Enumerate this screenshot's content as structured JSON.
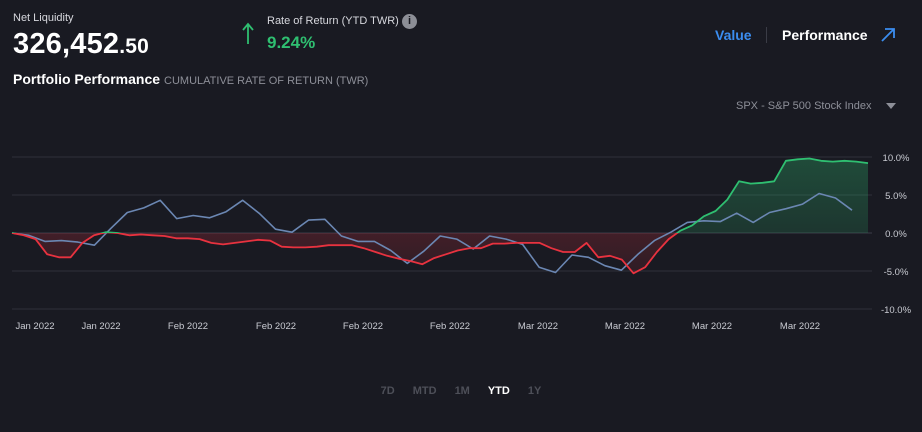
{
  "header": {
    "net_liquidity_label": "Net Liquidity",
    "net_liquidity_whole": "326,452",
    "net_liquidity_cents": ".50",
    "ror_label": "Rate of Return (YTD TWR)",
    "ror_info_glyph": "i",
    "ror_value": "9.24%",
    "ror_direction_icon": "arrow-up-icon",
    "portfolio_title": "Portfolio Performance",
    "portfolio_subtitle": "CUMULATIVE RATE OF RETURN (TWR)"
  },
  "tabs": {
    "value_label": "Value",
    "performance_label": "Performance",
    "active": "Performance"
  },
  "benchmark": {
    "selected": "SPX - S&P 500 Stock Index"
  },
  "periods": [
    {
      "label": "7D",
      "active": false
    },
    {
      "label": "MTD",
      "active": false
    },
    {
      "label": "1M",
      "active": false
    },
    {
      "label": "YTD",
      "active": true
    },
    {
      "label": "1Y",
      "active": false
    }
  ],
  "colors": {
    "background": "#191a22",
    "positive": "#2fbf71",
    "negative": "#e8323f",
    "benchmark": "#6b87b3",
    "accent": "#3b8df0",
    "grid": "#2e303a"
  },
  "chart_data": {
    "type": "line",
    "ylim": [
      -10,
      10
    ],
    "y_ticks": [
      "10.0%",
      "5.0%",
      "0.0%",
      "-5.0%",
      "-10.0%"
    ],
    "y_tick_values": [
      10,
      5,
      0,
      -5,
      -10
    ],
    "x_tick_labels": [
      "Jan 2022",
      "Jan 2022",
      "Feb 2022",
      "Feb 2022",
      "Feb 2022",
      "Feb 2022",
      "Mar 2022",
      "Mar 2022",
      "Mar 2022",
      "Mar 2022"
    ],
    "grid": true,
    "series": [
      {
        "role": "portfolio",
        "values": [
          0.0,
          -0.3,
          -0.8,
          -2.8,
          -3.2,
          -3.2,
          -1.3,
          -0.3,
          0.1,
          0.0,
          -0.3,
          -0.2,
          -0.3,
          -0.4,
          -0.7,
          -0.7,
          -0.8,
          -1.3,
          -1.5,
          -1.3,
          -1.1,
          -0.9,
          -1.0,
          -1.8,
          -1.9,
          -1.9,
          -1.8,
          -1.6,
          -1.6,
          -1.6,
          -2.0,
          -2.5,
          -3.0,
          -3.4,
          -3.7,
          -4.1,
          -3.3,
          -2.8,
          -2.3,
          -2.0,
          -2.0,
          -1.4,
          -1.4,
          -1.3,
          -1.3,
          -1.3,
          -2.0,
          -2.5,
          -2.5,
          -1.3,
          -3.2,
          -3.0,
          -3.5,
          -5.3,
          -4.5,
          -2.5,
          -0.8,
          0.3,
          1.0,
          2.2,
          2.9,
          4.4,
          6.8,
          6.5,
          6.6,
          6.8,
          9.5,
          9.7,
          9.8,
          9.5,
          9.4,
          9.5,
          9.4,
          9.2
        ]
      },
      {
        "role": "benchmark",
        "values": [
          0.0,
          -0.3,
          -1.1,
          -1.0,
          -1.2,
          -1.6,
          0.6,
          2.7,
          3.3,
          4.3,
          1.9,
          2.3,
          2.0,
          2.8,
          4.3,
          2.6,
          0.5,
          0.1,
          1.7,
          1.8,
          -0.4,
          -1.1,
          -1.1,
          -2.3,
          -4.0,
          -2.4,
          -0.4,
          -0.8,
          -2.1,
          -0.4,
          -0.8,
          -1.5,
          -4.5,
          -5.2,
          -2.9,
          -3.2,
          -4.3,
          -4.9,
          -2.8,
          -1.0,
          0.1,
          1.4,
          1.6,
          1.5,
          2.6,
          1.4,
          2.7,
          3.2,
          3.8,
          5.2,
          4.6,
          3.0
        ]
      }
    ]
  }
}
